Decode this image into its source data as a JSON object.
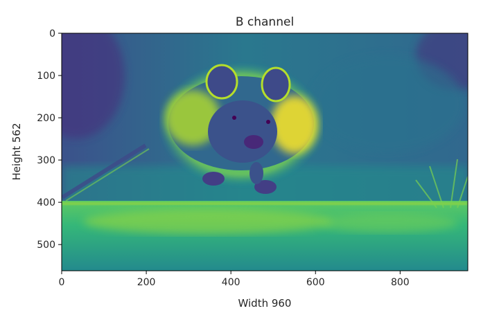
{
  "chart_data": {
    "type": "heatmap",
    "title": "B channel",
    "xlabel": "Width 960",
    "ylabel": "Height 562",
    "xlim": [
      0,
      960
    ],
    "ylim": [
      562,
      0
    ],
    "xticks": [
      0,
      200,
      400,
      600,
      800
    ],
    "yticks": [
      0,
      100,
      200,
      300,
      400,
      500
    ],
    "colormap": "viridis",
    "grid": false,
    "image_content": "blue-channel intensity of a photo of a hamster running toward the camera over a grassy surface"
  },
  "colors": {
    "low": "#440154",
    "mid": "#21918c",
    "high": "#fde725"
  }
}
